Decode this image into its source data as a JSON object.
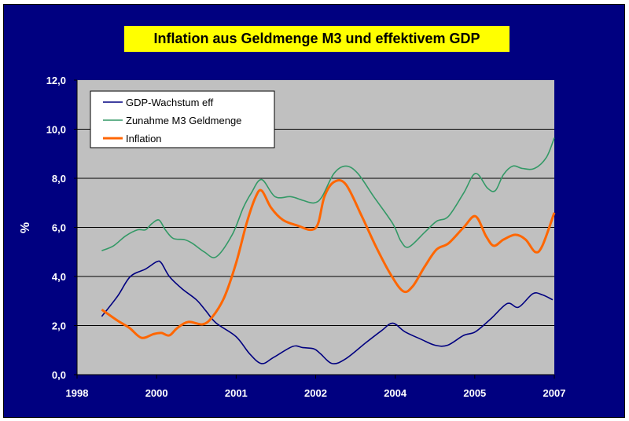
{
  "chart_data": {
    "type": "line",
    "title": "Inflation aus Geldmenge M3 und effektivem GDP",
    "xlabel": "",
    "ylabel": "%",
    "x_tick_labels": [
      "1998",
      "2000",
      "2001",
      "2002",
      "2004",
      "2005",
      "2007"
    ],
    "y_tick_labels": [
      "0,0",
      "2,0",
      "4,0",
      "6,0",
      "8,0",
      "10,0",
      "12,0"
    ],
    "ylim": [
      0,
      12
    ],
    "xlim": [
      0,
      6
    ],
    "grid": "horizontal",
    "legend_position": "top-left",
    "series": [
      {
        "name": "GDP-Wachstum eff",
        "color": "#000080",
        "x": [
          0.31,
          0.51,
          0.67,
          0.86,
          1.0,
          1.06,
          1.16,
          1.32,
          1.5,
          1.62,
          1.75,
          2.0,
          2.17,
          2.32,
          2.47,
          2.71,
          2.84,
          2.98,
          3.06,
          3.21,
          3.38,
          3.63,
          3.83,
          3.97,
          4.12,
          4.32,
          4.5,
          4.66,
          4.86,
          5.01,
          5.21,
          5.41,
          5.55,
          5.73,
          5.85,
          5.98
        ],
        "y": [
          2.37,
          3.2,
          4.0,
          4.3,
          4.6,
          4.55,
          4.0,
          3.5,
          3.05,
          2.6,
          2.1,
          1.55,
          0.85,
          0.45,
          0.7,
          1.15,
          1.1,
          1.05,
          0.85,
          0.45,
          0.65,
          1.3,
          1.8,
          2.1,
          1.75,
          1.45,
          1.2,
          1.2,
          1.6,
          1.75,
          2.3,
          2.9,
          2.75,
          3.3,
          3.25,
          3.05
        ]
      },
      {
        "name": "Zunahme M3 Geldmenge",
        "color": "#339966",
        "x": [
          0.31,
          0.46,
          0.61,
          0.76,
          0.86,
          0.94,
          1.03,
          1.11,
          1.21,
          1.35,
          1.45,
          1.6,
          1.75,
          1.95,
          2.09,
          2.19,
          2.32,
          2.49,
          2.69,
          2.84,
          2.98,
          3.08,
          3.23,
          3.38,
          3.53,
          3.73,
          3.97,
          4.07,
          4.17,
          4.37,
          4.52,
          4.67,
          4.86,
          5.01,
          5.16,
          5.26,
          5.36,
          5.48,
          5.6,
          5.75,
          5.9,
          6.0
        ],
        "y": [
          5.05,
          5.25,
          5.65,
          5.9,
          5.9,
          6.15,
          6.3,
          5.9,
          5.55,
          5.5,
          5.35,
          5.0,
          4.8,
          5.7,
          6.8,
          7.4,
          7.95,
          7.25,
          7.25,
          7.1,
          7.0,
          7.25,
          8.2,
          8.5,
          8.2,
          7.25,
          6.15,
          5.45,
          5.2,
          5.8,
          6.25,
          6.45,
          7.4,
          8.2,
          7.6,
          7.5,
          8.15,
          8.5,
          8.4,
          8.4,
          8.85,
          9.65
        ]
      },
      {
        "name": "Inflation",
        "color": "#ff6600",
        "x": [
          0.31,
          0.51,
          0.66,
          0.81,
          0.96,
          1.06,
          1.16,
          1.26,
          1.4,
          1.58,
          1.7,
          1.85,
          2.0,
          2.13,
          2.24,
          2.32,
          2.44,
          2.59,
          2.79,
          2.94,
          3.03,
          3.11,
          3.23,
          3.38,
          3.58,
          3.76,
          3.94,
          4.1,
          4.22,
          4.37,
          4.52,
          4.67,
          4.86,
          5.01,
          5.14,
          5.24,
          5.36,
          5.51,
          5.64,
          5.76,
          5.85,
          6.0
        ],
        "y": [
          2.65,
          2.2,
          1.9,
          1.5,
          1.65,
          1.7,
          1.6,
          1.9,
          2.15,
          2.05,
          2.35,
          3.15,
          4.55,
          6.15,
          7.2,
          7.5,
          6.8,
          6.3,
          6.05,
          5.9,
          6.15,
          7.25,
          7.85,
          7.75,
          6.45,
          5.2,
          4.1,
          3.4,
          3.6,
          4.4,
          5.1,
          5.35,
          6.0,
          6.45,
          5.65,
          5.25,
          5.5,
          5.7,
          5.5,
          5.0,
          5.25,
          6.6
        ]
      }
    ]
  }
}
